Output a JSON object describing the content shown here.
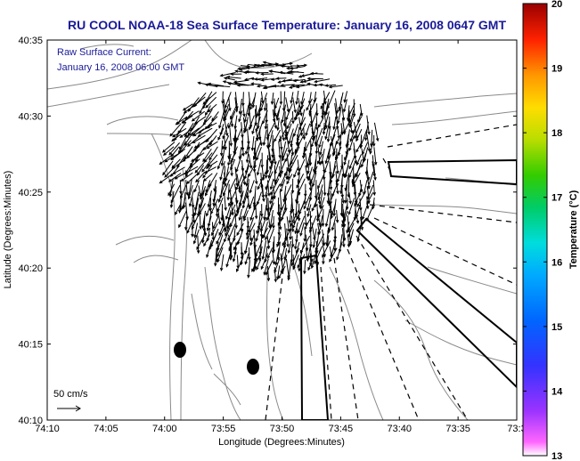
{
  "title": "RU COOL  NOAA-18  Sea Surface Temperature:  January 16, 2008 0647 GMT",
  "annotation": {
    "line1": "Raw Surface Current:",
    "line2": "January 16, 2008 06:00 GMT"
  },
  "scale_label": "50 cm/s",
  "x_axis": {
    "label": "Longitude (Degrees:Minutes)",
    "ticks": [
      "74:10",
      "74:05",
      "74:00",
      "73:55",
      "73:50",
      "73:45",
      "73:40",
      "73:35",
      "73:3"
    ]
  },
  "y_axis": {
    "label": "Latitude (Degrees:Minutes)",
    "ticks": [
      "40:35",
      "40:30",
      "40:25",
      "40:20",
      "40:15",
      "40:10"
    ]
  },
  "colorbar": {
    "label": "Temperature (°C)",
    "ticks": [
      "20",
      "19",
      "18",
      "17",
      "16",
      "15",
      "14",
      "13"
    ],
    "min": 13,
    "max": 20
  },
  "colors": {
    "title": "#1a1a99",
    "contour": "#8a8a8a",
    "frame": "#000000"
  }
}
